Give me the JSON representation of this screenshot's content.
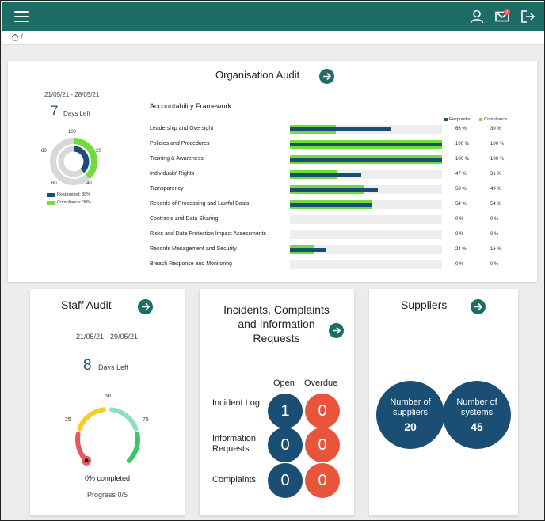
{
  "breadcrumb": {
    "separator": "/"
  },
  "header": {
    "notification_count": "0"
  },
  "colors": {
    "brand": "#1e6c66",
    "responded": "#1b4e73",
    "compliance": "#6fdd3c",
    "overdue": "#e8553b"
  },
  "org_audit": {
    "title": "Organisation Audit",
    "date_range": "21/05/21 - 28/05/21",
    "days_left_value": "7",
    "days_left_label": "Days Left",
    "donut": {
      "ticks": [
        "100",
        "20",
        "40",
        "60",
        "80"
      ],
      "responded_pct": 38,
      "compliance_pct": 38,
      "legend": {
        "responded": "Responded: 38%",
        "compliance": "Compliance: 38%"
      }
    },
    "framework_title": "Accountability Framework",
    "legend": {
      "responded": "Responded",
      "compliance": "Compliance"
    },
    "rows": [
      {
        "label": "Leadership and Oversight",
        "responded": 66,
        "compliance": 30,
        "responded_text": "66 %",
        "compliance_text": "30 %"
      },
      {
        "label": "Policies and Procedures",
        "responded": 100,
        "compliance": 100,
        "responded_text": "100 %",
        "compliance_text": "100 %"
      },
      {
        "label": "Training & Awareness",
        "responded": 100,
        "compliance": 100,
        "responded_text": "100 %",
        "compliance_text": "100 %"
      },
      {
        "label": "Individuals' Rights",
        "responded": 47,
        "compliance": 31,
        "responded_text": "47 %",
        "compliance_text": "31 %"
      },
      {
        "label": "Transparency",
        "responded": 58,
        "compliance": 49,
        "responded_text": "58 %",
        "compliance_text": "49 %"
      },
      {
        "label": "Records of Processing and Lawful Basis",
        "responded": 54,
        "compliance": 54,
        "responded_text": "54 %",
        "compliance_text": "54 %"
      },
      {
        "label": "Contracts and Data Sharing",
        "responded": 0,
        "compliance": 0,
        "responded_text": "0 %",
        "compliance_text": "0 %"
      },
      {
        "label": "Risks and Data Protection Impact Assessments",
        "responded": 0,
        "compliance": 0,
        "responded_text": "0 %",
        "compliance_text": "0 %"
      },
      {
        "label": "Records Management and Security",
        "responded": 24,
        "compliance": 16,
        "responded_text": "24 %",
        "compliance_text": "16 %"
      },
      {
        "label": "Breach Response and Monitoring",
        "responded": 0,
        "compliance": 0,
        "responded_text": "0 %",
        "compliance_text": "0 %"
      }
    ]
  },
  "staff_audit": {
    "title": "Staff Audit",
    "date_range": "21/05/21 - 29/05/21",
    "days_left_value": "8",
    "days_left_label": "Days Left",
    "gauge_ticks": {
      "t25": "25",
      "t50": "50",
      "t75": "75"
    },
    "progress_pct": 0,
    "completed_text": "0% completed",
    "progress_text": "Progress 0/5"
  },
  "incidents": {
    "title": "Incidents, Complaints and Information Requests",
    "col_open": "Open",
    "col_overdue": "Overdue",
    "rows": [
      {
        "label": "Incident Log",
        "open": "1",
        "overdue": "0"
      },
      {
        "label": "Information Requests",
        "open": "0",
        "overdue": "0"
      },
      {
        "label": "Complaints",
        "open": "0",
        "overdue": "0"
      }
    ]
  },
  "suppliers": {
    "title": "Suppliers",
    "suppliers_label": "Number of suppliers",
    "suppliers_value": "20",
    "systems_label": "Number of systems",
    "systems_value": "45"
  }
}
